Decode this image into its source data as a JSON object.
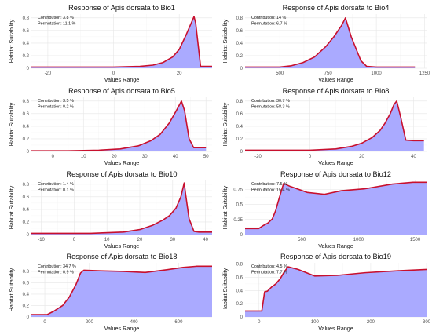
{
  "chart_data": [
    {
      "type": "area",
      "title": "Response of Apis dorsata to Bio1",
      "xlabel": "Values Range",
      "ylabel": "Habitat Suitability",
      "xlim": [
        -25,
        30
      ],
      "ylim": [
        0,
        0.86
      ],
      "xticks": [
        -20,
        0,
        20
      ],
      "yticks": [
        0,
        0.2,
        0.4,
        0.6,
        0.8
      ],
      "annotations": [
        "Contribution: 3.8 %",
        "Permutation: 11.1 %"
      ],
      "series": [
        {
          "x": [
            -25,
            -10,
            0,
            8,
            12,
            15,
            18,
            20,
            22,
            23.5,
            24.5,
            25,
            26.5,
            27,
            30
          ],
          "values": [
            0.02,
            0.02,
            0.02,
            0.03,
            0.05,
            0.09,
            0.18,
            0.3,
            0.52,
            0.7,
            0.82,
            0.72,
            0.03,
            0.03,
            0.03
          ]
        }
      ]
    },
    {
      "type": "area",
      "title": "Response of Apis dorsata to Bio4",
      "xlabel": "Values Range",
      "ylabel": "Habitat Suitability",
      "xlim": [
        320,
        1260
      ],
      "ylim": [
        0,
        0.86
      ],
      "xticks": [
        500,
        750,
        1000,
        1250
      ],
      "yticks": [
        0,
        0.2,
        0.4,
        0.6,
        0.8
      ],
      "annotations": [
        "Contribution: 14 %",
        "Permutation: 6.7 %"
      ],
      "series": [
        {
          "x": [
            320,
            500,
            560,
            620,
            680,
            740,
            780,
            820,
            840,
            870,
            920,
            950,
            1000,
            1100,
            1200
          ],
          "values": [
            0.02,
            0.02,
            0.04,
            0.09,
            0.18,
            0.35,
            0.5,
            0.68,
            0.8,
            0.5,
            0.12,
            0.03,
            0.02,
            0.02,
            0.02
          ]
        }
      ]
    },
    {
      "type": "area",
      "title": "Response of Apis dorsata to Bio5",
      "xlabel": "Values Range",
      "ylabel": "Habitat Suitability",
      "xlim": [
        -7,
        52
      ],
      "ylim": [
        0,
        0.86
      ],
      "xticks": [
        0,
        10,
        20,
        30,
        40,
        50
      ],
      "yticks": [
        0,
        0.2,
        0.4,
        0.6,
        0.8
      ],
      "annotations": [
        "Contribution: 3.5 %",
        "Permutation: 0.2 %"
      ],
      "series": [
        {
          "x": [
            -7,
            5,
            15,
            22,
            28,
            32,
            35,
            38,
            40,
            42,
            43,
            44.5,
            46,
            47,
            50
          ],
          "values": [
            0.01,
            0.01,
            0.02,
            0.04,
            0.09,
            0.17,
            0.27,
            0.45,
            0.62,
            0.8,
            0.65,
            0.2,
            0.06,
            0.06,
            0.06
          ]
        }
      ]
    },
    {
      "type": "area",
      "title": "Response of Apis dorsata to Bio8",
      "xlabel": "Values Range",
      "ylabel": "Habitat Suitability",
      "xlim": [
        -25,
        45
      ],
      "ylim": [
        0,
        0.86
      ],
      "xticks": [
        -20,
        0,
        20,
        40
      ],
      "yticks": [
        0,
        0.2,
        0.4,
        0.6,
        0.8
      ],
      "annotations": [
        "Contribution: 30.7 %",
        "Permutation: 58.3 %"
      ],
      "series": [
        {
          "x": [
            -25,
            0,
            10,
            16,
            20,
            24,
            27,
            29,
            31,
            32.5,
            33.5,
            35,
            37,
            40,
            44
          ],
          "values": [
            0.02,
            0.02,
            0.04,
            0.08,
            0.13,
            0.22,
            0.33,
            0.45,
            0.6,
            0.75,
            0.8,
            0.55,
            0.18,
            0.17,
            0.17
          ]
        }
      ]
    },
    {
      "type": "area",
      "title": "Response of Apis dorsata to Bio10",
      "xlabel": "Values Range",
      "ylabel": "Habitat Suitability",
      "xlim": [
        -13,
        42
      ],
      "ylim": [
        0,
        0.86
      ],
      "xticks": [
        -10,
        0,
        10,
        20,
        30,
        40
      ],
      "yticks": [
        0,
        0.2,
        0.4,
        0.6,
        0.8
      ],
      "annotations": [
        "Contribution: 1.4 %",
        "Permutation: 0.1 %"
      ],
      "series": [
        {
          "x": [
            -13,
            5,
            15,
            20,
            24,
            27,
            29,
            31,
            32.5,
            33.5,
            34,
            35,
            36.5,
            38,
            42
          ],
          "values": [
            0.02,
            0.02,
            0.04,
            0.08,
            0.15,
            0.23,
            0.3,
            0.42,
            0.6,
            0.82,
            0.62,
            0.25,
            0.05,
            0.04,
            0.04
          ]
        }
      ]
    },
    {
      "type": "area",
      "title": "Response of Apis dorsata to Bio12",
      "xlabel": "Values Range",
      "ylabel": "Habitat Suitability",
      "xlim": [
        0,
        1600
      ],
      "ylim": [
        0,
        0.9
      ],
      "xticks": [
        500,
        1000,
        1500
      ],
      "yticks": [
        0,
        0.25,
        0.5,
        0.75
      ],
      "annotations": [
        "Contribution: 7.5 %",
        "Permutation: 15.4 %"
      ],
      "series": [
        {
          "x": [
            0,
            120,
            160,
            200,
            240,
            270,
            300,
            340,
            400,
            550,
            700,
            850,
            1050,
            1300,
            1480,
            1600
          ],
          "values": [
            0.1,
            0.1,
            0.15,
            0.19,
            0.26,
            0.4,
            0.6,
            0.85,
            0.8,
            0.7,
            0.67,
            0.73,
            0.76,
            0.84,
            0.87,
            0.87
          ]
        }
      ]
    },
    {
      "type": "area",
      "title": "Response of Apis dorsata to Bio18",
      "xlabel": "Values Range",
      "ylabel": "Habitat Suitability",
      "xlim": [
        -60,
        750
      ],
      "ylim": [
        0,
        0.95
      ],
      "xticks": [
        0,
        200,
        400,
        600
      ],
      "yticks": [
        0,
        0.2,
        0.4,
        0.6,
        0.8
      ],
      "annotations": [
        "Contribution: 34.7 %",
        "Permutation: 0.9 %"
      ],
      "series": [
        {
          "x": [
            -60,
            10,
            40,
            80,
            110,
            140,
            160,
            175,
            250,
            350,
            450,
            550,
            620,
            680,
            750
          ],
          "values": [
            0.04,
            0.04,
            0.1,
            0.2,
            0.35,
            0.57,
            0.77,
            0.82,
            0.81,
            0.8,
            0.78,
            0.83,
            0.87,
            0.89,
            0.89
          ]
        }
      ]
    },
    {
      "type": "area",
      "title": "Response of Apis dorsata to Bio19",
      "xlabel": "Values Range",
      "ylabel": "Habitat Suitability",
      "xlim": [
        -25,
        300
      ],
      "ylim": [
        0,
        0.82
      ],
      "xticks": [
        0,
        100,
        200,
        300
      ],
      "yticks": [
        0,
        0.2,
        0.4,
        0.6,
        0.8
      ],
      "annotations": [
        "Contribution: 4.5 %",
        "Permutation: 7.7 %"
      ],
      "series": [
        {
          "x": [
            -25,
            5,
            10,
            15,
            22,
            30,
            38,
            45,
            52,
            70,
            100,
            140,
            190,
            250,
            300
          ],
          "values": [
            0.09,
            0.09,
            0.38,
            0.39,
            0.45,
            0.5,
            0.58,
            0.68,
            0.76,
            0.72,
            0.62,
            0.63,
            0.67,
            0.7,
            0.72
          ]
        }
      ]
    }
  ]
}
